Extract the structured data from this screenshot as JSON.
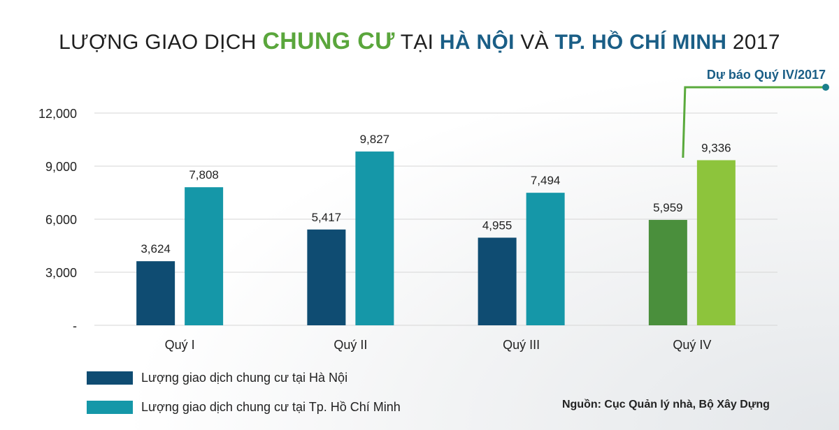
{
  "title": {
    "part1": "LƯỢNG GIAO DỊCH ",
    "part2": "CHUNG CƯ",
    "part3": " TẠI ",
    "part4": "HÀ NỘI",
    "part5": " VÀ ",
    "part6": "TP. HỒ CHÍ MINH",
    "part7": " 2017"
  },
  "forecast_label": "Dự báo Quý IV/2017",
  "source": "Nguồn: Cục Quản lý nhà, Bộ Xây Dựng",
  "colors": {
    "hanoi": "#0f4c72",
    "hcm": "#1597a8",
    "forecast_hanoi": "#4a8f3c",
    "forecast_hcm": "#8dc43c",
    "forecast_accent": "#5aaa3c",
    "forecast_text": "#1a5e86",
    "gridline": "#d6d6d6"
  },
  "chart_data": {
    "type": "bar",
    "categories": [
      "Quý I",
      "Quý II",
      "Quý III",
      "Quý IV"
    ],
    "series": [
      {
        "name": "Lượng giao dịch chung cư tại Hà Nội",
        "values": [
          3624,
          5417,
          4955,
          5959
        ],
        "value_labels": [
          "3,624",
          "5,417",
          "4,955",
          "5,959"
        ]
      },
      {
        "name": "Lượng giao dịch chung cư tại Tp. Hồ Chí  Minh",
        "values": [
          7808,
          9827,
          7494,
          9336
        ],
        "value_labels": [
          "7,808",
          "9,827",
          "7,494",
          "9,336"
        ]
      }
    ],
    "forecast_category": "Quý IV",
    "ylim": [
      0,
      12000
    ],
    "yticks": [
      0,
      3000,
      6000,
      9000,
      12000
    ],
    "ytick_labels": [
      "-",
      "3,000",
      "6,000",
      "9,000",
      "12,000"
    ],
    "grid": true,
    "legend_position": "bottom-left"
  }
}
